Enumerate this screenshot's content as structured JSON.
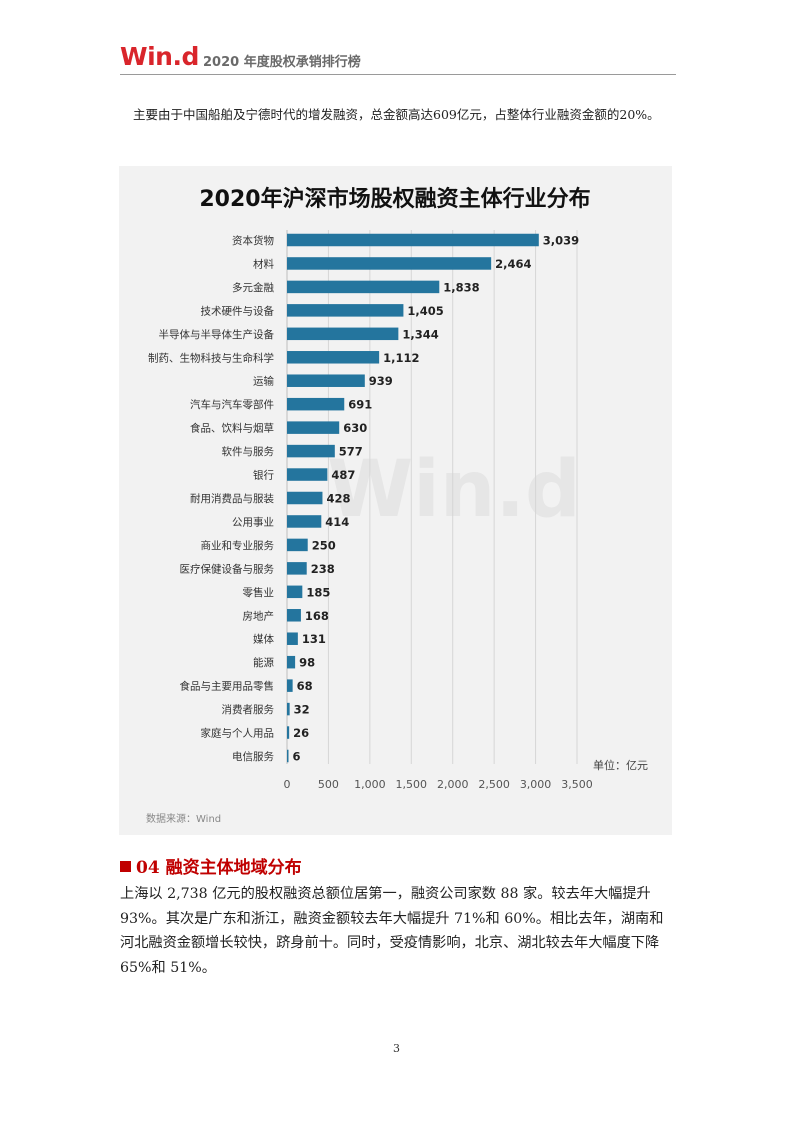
{
  "header": {
    "logo": "Win.d",
    "title": "2020 年度股权承销排行榜"
  },
  "paragraph_1": "主要由于中国船舶及宁德时代的增发融资，总金额高达609亿元，占整体行业融资金额的20%。",
  "chart_data": {
    "type": "bar",
    "orientation": "horizontal",
    "title": "2020年沪深市场股权融资主体行业分布",
    "categories": [
      "资本货物",
      "材料",
      "多元金融",
      "技术硬件与设备",
      "半导体与半导体生产设备",
      "制药、生物科技与生命科学",
      "运输",
      "汽车与汽车零部件",
      "食品、饮料与烟草",
      "软件与服务",
      "银行",
      "耐用消费品与服装",
      "公用事业",
      "商业和专业服务",
      "医疗保健设备与服务",
      "零售业",
      "房地产",
      "媒体",
      "能源",
      "食品与主要用品零售",
      "消费者服务",
      "家庭与个人用品",
      "电信服务"
    ],
    "values": [
      3039,
      2464,
      1838,
      1405,
      1344,
      1112,
      939,
      691,
      630,
      577,
      487,
      428,
      414,
      250,
      238,
      185,
      168,
      131,
      98,
      68,
      32,
      26,
      6
    ],
    "value_labels": [
      "3,039",
      "2,464",
      "1,838",
      "1,405",
      "1,344",
      "1,112",
      "939",
      "691",
      "630",
      "577",
      "487",
      "428",
      "414",
      "250",
      "238",
      "185",
      "168",
      "131",
      "98",
      "68",
      "32",
      "26",
      "6"
    ],
    "x_ticks": [
      "0",
      "500",
      "1,000",
      "1,500",
      "2,000",
      "2,500",
      "3,000",
      "3,500"
    ],
    "xlim": [
      0,
      3500
    ],
    "unit_label": "单位：亿元",
    "source": "数据来源：Wind",
    "watermark": "Win.d",
    "grid": "vertical",
    "bar_color": "#24759e"
  },
  "section": {
    "title": "04 融资主体地域分布"
  },
  "paragraph_2": "上海以 2,738 亿元的股权融资总额位居第一，融资公司家数 88 家。较去年大幅提升 93%。其次是广东和浙江，融资金额较去年大幅提升 71%和 60%。相比去年，湖南和河北融资金额增长较快，跻身前十。同时，受疫情影响，北京、湖北较去年大幅度下降 65%和 51%。",
  "page_number": "3"
}
